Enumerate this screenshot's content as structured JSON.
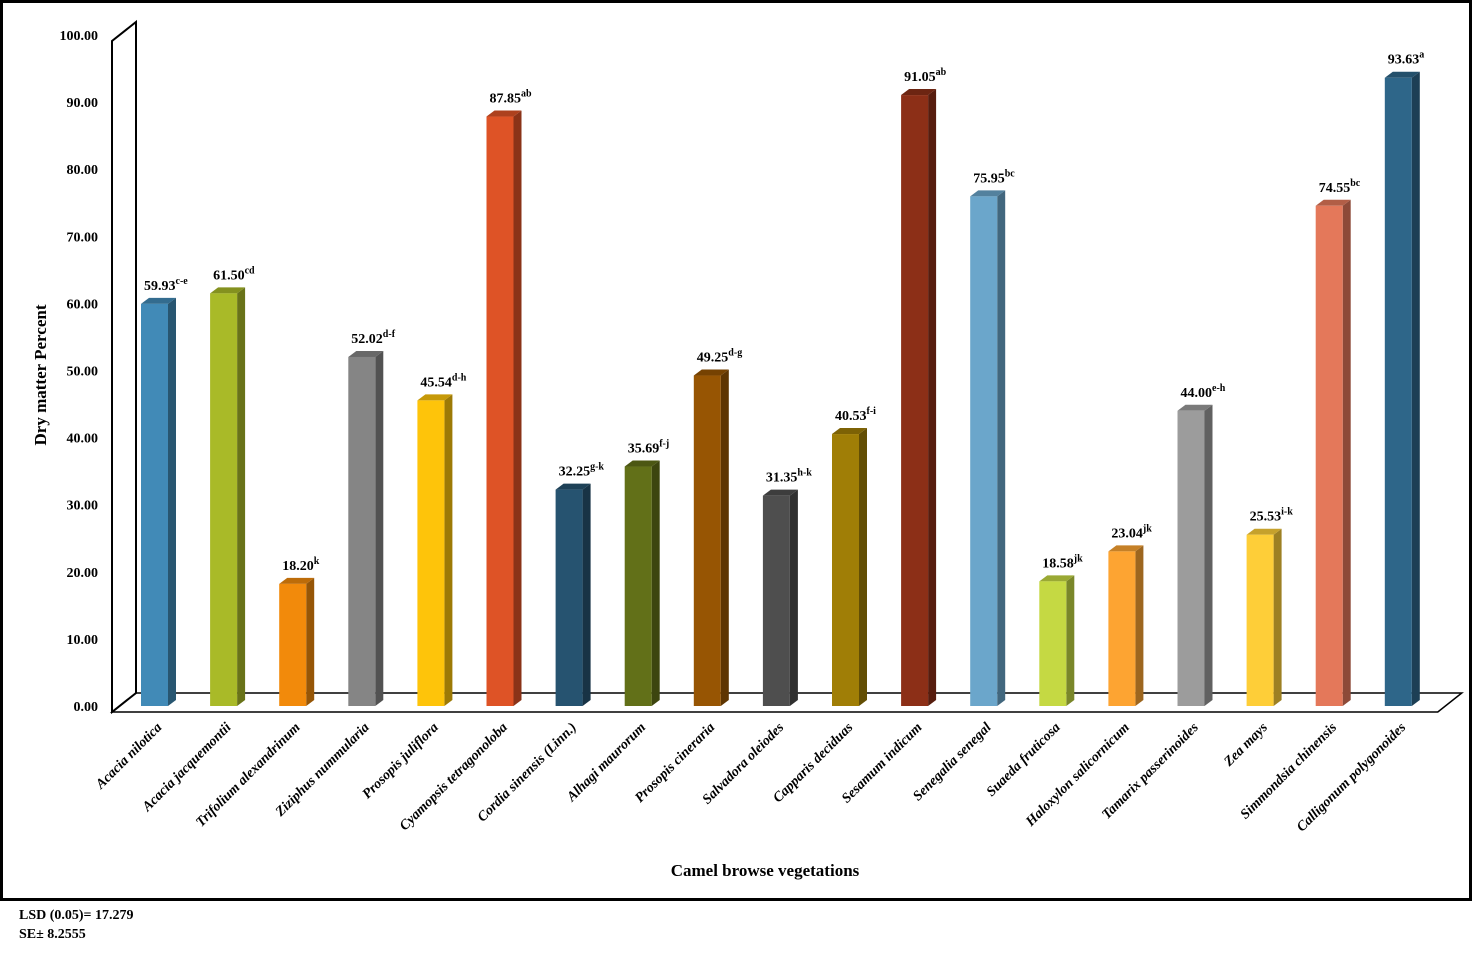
{
  "chart_data": {
    "type": "bar",
    "style": "3d-column",
    "title": "",
    "xlabel": "Camel browse vegetations",
    "ylabel": "Dry matter Percent",
    "ylim": [
      0,
      100
    ],
    "yticks": [
      "0.00",
      "10.00",
      "20.00",
      "30.00",
      "40.00",
      "50.00",
      "60.00",
      "70.00",
      "80.00",
      "90.00",
      "100.00"
    ],
    "grid": false,
    "legend": "none",
    "categories": [
      "Acacia nilotica",
      "Acacia jacquemontii",
      "Trifolium alexandrinum",
      "Ziziphus nummularia",
      "Prosopis juliflora",
      "Cyamopsis tetragonoloba",
      "Cordia sinensis (Linn.)",
      "Alhagi maurorum",
      "Prosopis cineraria",
      "Salvadora oleiodes",
      "Capparis deciduas",
      "Sesamum indicum",
      "Senegalia senegal",
      "Suaeda fruticosa",
      "Haloxylon salicornicum",
      "Tamarix passerinoides",
      "Zea mays",
      "Simmondsia chinensis",
      "Calligonum polygonoides"
    ],
    "values": [
      59.93,
      61.5,
      18.2,
      52.02,
      45.54,
      87.85,
      32.25,
      35.69,
      49.25,
      31.35,
      40.53,
      91.05,
      75.95,
      18.58,
      23.04,
      44.0,
      25.53,
      74.55,
      93.63
    ],
    "value_labels": [
      "59.93",
      "61.50",
      "18.20",
      "52.02",
      "45.54",
      "87.85",
      "32.25",
      "35.69",
      "49.25",
      "31.35",
      "40.53",
      "91.05",
      "75.95",
      "18.58",
      "23.04",
      "44.00",
      "25.53",
      "74.55",
      "93.63"
    ],
    "significance_letters": [
      "c-e",
      "cd",
      "k",
      "d-f",
      "d-h",
      "ab",
      "g-k",
      "f-j",
      "d-g",
      "h-k",
      "f-i",
      "ab",
      "bc",
      "jk",
      "jk",
      "e-h",
      "i-k",
      "bc",
      "a"
    ],
    "colors": [
      "#418AB7",
      "#A9BA28",
      "#F28A0B",
      "#858585",
      "#FEC40A",
      "#DE5326",
      "#265370",
      "#627018",
      "#975503",
      "#4E4E4E",
      "#A07E06",
      "#8C2F17",
      "#6BA6CB",
      "#C5D943",
      "#FDA432",
      "#9C9C9C",
      "#FECE38",
      "#E4785A",
      "#2E6689"
    ]
  },
  "footnotes": {
    "lsd": "LSD (0.05)= 17.279",
    "se": "SE±  8.2555"
  }
}
